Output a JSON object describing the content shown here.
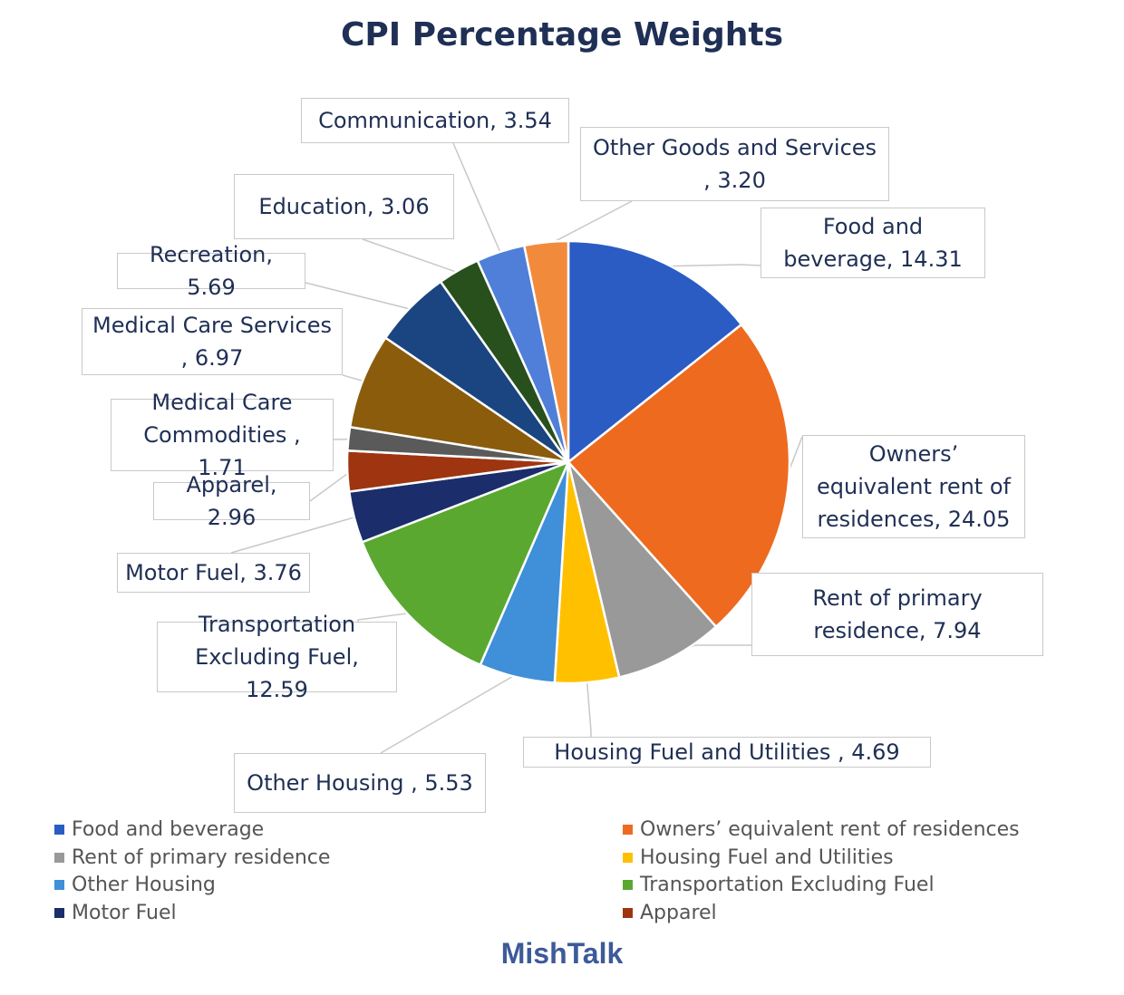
{
  "chart_data": {
    "type": "pie",
    "title": "CPI Percentage Weights",
    "slices": [
      {
        "label": "Food and beverage",
        "callout": "Food and beverage, 14.31",
        "value": 14.31,
        "color": "#2a5cc4"
      },
      {
        "label": "Owners’ equivalent rent of residences",
        "callout": "Owners’ equivalent rent of residences, 24.05",
        "value": 24.05,
        "color": "#ee6a1e"
      },
      {
        "label": "Rent of primary residence",
        "callout": "Rent of primary residence, 7.94",
        "value": 7.94,
        "color": "#999999"
      },
      {
        "label": "Housing Fuel and Utilities",
        "callout": "Housing Fuel and Utilities , 4.69",
        "value": 4.69,
        "color": "#ffc000"
      },
      {
        "label": "Other Housing",
        "callout": "Other Housing , 5.53",
        "value": 5.53,
        "color": "#3f8fd9"
      },
      {
        "label": "Transportation Excluding Fuel",
        "callout": "Transportation Excluding Fuel, 12.59",
        "value": 12.59,
        "color": "#5aa830"
      },
      {
        "label": "Motor Fuel",
        "callout": "Motor Fuel, 3.76",
        "value": 3.76,
        "color": "#1c2d6b"
      },
      {
        "label": "Apparel",
        "callout": "Apparel, 2.96",
        "value": 2.96,
        "color": "#9e3510"
      },
      {
        "label": "Medical Care Commodities",
        "callout": "Medical Care Commodities , 1.71",
        "value": 1.71,
        "color": "#5a5a5a"
      },
      {
        "label": "Medical Care Services",
        "callout": "Medical Care Services , 6.97",
        "value": 6.97,
        "color": "#8a5c0c"
      },
      {
        "label": "Recreation",
        "callout": "Recreation, 5.69",
        "value": 5.69,
        "color": "#1a4580"
      },
      {
        "label": "Education",
        "callout": "Education, 3.06",
        "value": 3.06,
        "color": "#28501c"
      },
      {
        "label": "Communication",
        "callout": "Communication, 3.54",
        "value": 3.54,
        "color": "#4f7fd8"
      },
      {
        "label": "Other Goods and Services",
        "callout": "Other Goods and Services , 3.20",
        "value": 3.2,
        "color": "#f28a3c"
      }
    ],
    "legend": [
      {
        "label": "Food and beverage",
        "color": "#2a5cc4"
      },
      {
        "label": "Owners’ equivalent rent of residences",
        "color": "#ee6a1e"
      },
      {
        "label": "Rent of primary residence",
        "color": "#999999"
      },
      {
        "label": "Housing Fuel and Utilities",
        "color": "#ffc000"
      },
      {
        "label": "Other Housing",
        "color": "#3f8fd9"
      },
      {
        "label": "Transportation Excluding Fuel",
        "color": "#5aa830"
      },
      {
        "label": "Motor Fuel",
        "color": "#1c2d6b"
      },
      {
        "label": "Apparel",
        "color": "#9e3510"
      }
    ],
    "legend_placement": "bottom"
  },
  "brand": "MishTalk"
}
